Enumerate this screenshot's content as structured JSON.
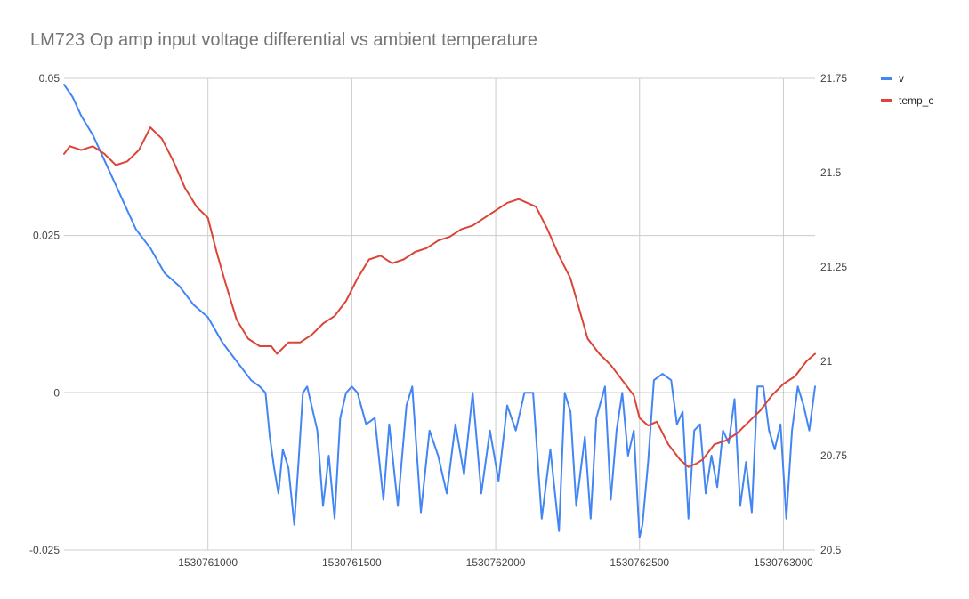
{
  "chart_data": {
    "type": "line",
    "title": "LM723 Op amp input voltage differential vs ambient temperature",
    "x_axis": {
      "range": [
        1530760500,
        1530763110
      ],
      "ticks": [
        1530761000,
        1530761500,
        1530762000,
        1530762500,
        1530763000
      ],
      "tick_labels": [
        "1530761000",
        "1530761500",
        "1530762000",
        "1530762500",
        "1530763000"
      ]
    },
    "y_axis_left": {
      "range": [
        -0.025,
        0.05
      ],
      "ticks": [
        -0.025,
        0,
        0.025,
        0.05
      ],
      "tick_labels": [
        "-0.025",
        "0",
        "0.025",
        "0.05"
      ]
    },
    "y_axis_right": {
      "range": [
        20.5,
        21.75
      ],
      "ticks": [
        20.5,
        20.75,
        21,
        21.25,
        21.5,
        21.75
      ],
      "tick_labels": [
        "20.5",
        "20.75",
        "21",
        "21.25",
        "21.5",
        "21.75"
      ]
    },
    "grid": true,
    "legend": "right",
    "series": [
      {
        "name": "v",
        "axis": "left",
        "color": "#4285f4",
        "x": [
          1530760500,
          1530760530,
          1530760560,
          1530760600,
          1530760650,
          1530760700,
          1530760750,
          1530760800,
          1530760850,
          1530760900,
          1530760950,
          1530761000,
          1530761050,
          1530761100,
          1530761150,
          1530761180,
          1530761200,
          1530761215,
          1530761230,
          1530761245,
          1530761260,
          1530761280,
          1530761300,
          1530761315,
          1530761330,
          1530761345,
          1530761360,
          1530761380,
          1530761400,
          1530761420,
          1530761440,
          1530761460,
          1530761480,
          1530761500,
          1530761520,
          1530761550,
          1530761580,
          1530761610,
          1530761630,
          1530761660,
          1530761690,
          1530761710,
          1530761740,
          1530761770,
          1530761800,
          1530761830,
          1530761860,
          1530761890,
          1530761920,
          1530761950,
          1530761980,
          1530762010,
          1530762040,
          1530762070,
          1530762100,
          1530762130,
          1530762160,
          1530762190,
          1530762220,
          1530762240,
          1530762260,
          1530762280,
          1530762310,
          1530762330,
          1530762350,
          1530762380,
          1530762400,
          1530762420,
          1530762440,
          1530762460,
          1530762480,
          1530762500,
          1530762510,
          1530762530,
          1530762550,
          1530762580,
          1530762610,
          1530762630,
          1530762650,
          1530762670,
          1530762690,
          1530762710,
          1530762730,
          1530762750,
          1530762770,
          1530762790,
          1530762810,
          1530762830,
          1530762850,
          1530762870,
          1530762890,
          1530762910,
          1530762930,
          1530762950,
          1530762970,
          1530762990,
          1530763010,
          1530763030,
          1530763050,
          1530763070,
          1530763090,
          1530763110
        ],
        "values": [
          0.049,
          0.047,
          0.044,
          0.041,
          0.036,
          0.031,
          0.026,
          0.023,
          0.019,
          0.017,
          0.014,
          0.012,
          0.008,
          0.005,
          0.002,
          0.001,
          0.0,
          -0.007,
          -0.012,
          -0.016,
          -0.009,
          -0.012,
          -0.021,
          -0.011,
          0.0,
          0.001,
          -0.002,
          -0.006,
          -0.018,
          -0.01,
          -0.02,
          -0.004,
          0.0,
          0.001,
          0.0,
          -0.005,
          -0.004,
          -0.017,
          -0.005,
          -0.018,
          -0.002,
          0.001,
          -0.019,
          -0.006,
          -0.01,
          -0.016,
          -0.005,
          -0.013,
          0.0,
          -0.016,
          -0.006,
          -0.014,
          -0.002,
          -0.006,
          0.0,
          0.0,
          -0.02,
          -0.009,
          -0.022,
          0.0,
          -0.003,
          -0.018,
          -0.007,
          -0.02,
          -0.004,
          0.001,
          -0.017,
          -0.006,
          0.0,
          -0.01,
          -0.006,
          -0.023,
          -0.021,
          -0.011,
          0.002,
          0.003,
          0.002,
          -0.005,
          -0.003,
          -0.02,
          -0.006,
          -0.005,
          -0.016,
          -0.01,
          -0.015,
          -0.006,
          -0.008,
          -0.001,
          -0.018,
          -0.011,
          -0.019,
          0.001,
          0.001,
          -0.006,
          -0.009,
          -0.005,
          -0.02,
          -0.006,
          0.001,
          -0.002,
          -0.006,
          0.001
        ]
      },
      {
        "name": "temp_c",
        "axis": "right",
        "color": "#db4437",
        "x": [
          1530760500,
          1530760520,
          1530760560,
          1530760600,
          1530760640,
          1530760680,
          1530760720,
          1530760760,
          1530760800,
          1530760840,
          1530760880,
          1530760920,
          1530760960,
          1530761000,
          1530761030,
          1530761060,
          1530761100,
          1530761140,
          1530761180,
          1530761220,
          1530761240,
          1530761280,
          1530761320,
          1530761360,
          1530761400,
          1530761440,
          1530761480,
          1530761520,
          1530761560,
          1530761600,
          1530761640,
          1530761680,
          1530761720,
          1530761760,
          1530761800,
          1530761840,
          1530761880,
          1530761920,
          1530761960,
          1530762000,
          1530762040,
          1530762080,
          1530762110,
          1530762140,
          1530762180,
          1530762220,
          1530762260,
          1530762290,
          1530762320,
          1530762360,
          1530762400,
          1530762440,
          1530762480,
          1530762500,
          1530762530,
          1530762560,
          1530762600,
          1530762640,
          1530762670,
          1530762700,
          1530762720,
          1530762760,
          1530762800,
          1530762840,
          1530762880,
          1530762920,
          1530762960,
          1530763000,
          1530763040,
          1530763080,
          1530763110
        ],
        "values": [
          21.55,
          21.57,
          21.56,
          21.57,
          21.55,
          21.52,
          21.53,
          21.56,
          21.62,
          21.59,
          21.53,
          21.46,
          21.41,
          21.38,
          21.29,
          21.21,
          21.11,
          21.06,
          21.04,
          21.04,
          21.02,
          21.05,
          21.05,
          21.07,
          21.1,
          21.12,
          21.16,
          21.22,
          21.27,
          21.28,
          21.26,
          21.27,
          21.29,
          21.3,
          21.32,
          21.33,
          21.35,
          21.36,
          21.38,
          21.4,
          21.42,
          21.43,
          21.42,
          21.41,
          21.35,
          21.28,
          21.22,
          21.14,
          21.06,
          21.02,
          20.99,
          20.95,
          20.91,
          20.85,
          20.83,
          20.84,
          20.78,
          20.74,
          20.72,
          20.73,
          20.74,
          20.78,
          20.79,
          20.81,
          20.84,
          20.87,
          20.91,
          20.94,
          20.96,
          21.0,
          21.02
        ]
      }
    ]
  }
}
